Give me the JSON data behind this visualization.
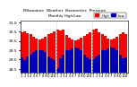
{
  "title": "Milwaukee  Weather  Barometric  Pressure",
  "subtitle": "Monthly High/Low",
  "background_color": "#ffffff",
  "high_color": "#ff0000",
  "low_color": "#0000bb",
  "ylim": [
    28.3,
    31.1
  ],
  "yticks": [
    28.5,
    29.0,
    29.5,
    30.0,
    30.5,
    31.0
  ],
  "months_labels": [
    "1",
    "2",
    "3",
    "4",
    "5",
    "6",
    "7",
    "8",
    "9",
    "10",
    "11",
    "12",
    "1",
    "2",
    "3",
    "4",
    "5",
    "6",
    "7",
    "8",
    "9",
    "10",
    "11",
    "12",
    "1",
    "2",
    "3",
    "4",
    "5",
    "6",
    "7",
    "8",
    "9",
    "10",
    "11",
    "12"
  ],
  "highs": [
    30.45,
    30.52,
    30.42,
    30.38,
    30.22,
    30.12,
    30.08,
    30.14,
    30.22,
    30.36,
    30.42,
    30.52,
    30.58,
    30.56,
    30.62,
    30.32,
    30.16,
    30.08,
    30.04,
    30.08,
    30.18,
    30.28,
    30.34,
    30.44,
    30.62,
    30.66,
    30.46,
    30.36,
    30.26,
    30.14,
    30.08,
    30.14,
    30.24,
    30.38,
    30.44,
    30.36
  ],
  "lows": [
    29.1,
    28.95,
    29.18,
    29.28,
    29.38,
    29.48,
    29.52,
    29.5,
    29.38,
    29.18,
    29.08,
    28.98,
    28.55,
    29.05,
    29.28,
    29.48,
    29.52,
    29.58,
    29.62,
    29.58,
    29.48,
    29.28,
    29.12,
    29.02,
    29.02,
    29.18,
    29.28,
    29.48,
    29.52,
    29.58,
    29.62,
    29.62,
    29.52,
    29.28,
    29.08,
    29.12
  ],
  "dashed_dividers": [
    11.5,
    23.5
  ],
  "legend_high": "High",
  "legend_low": "Low"
}
